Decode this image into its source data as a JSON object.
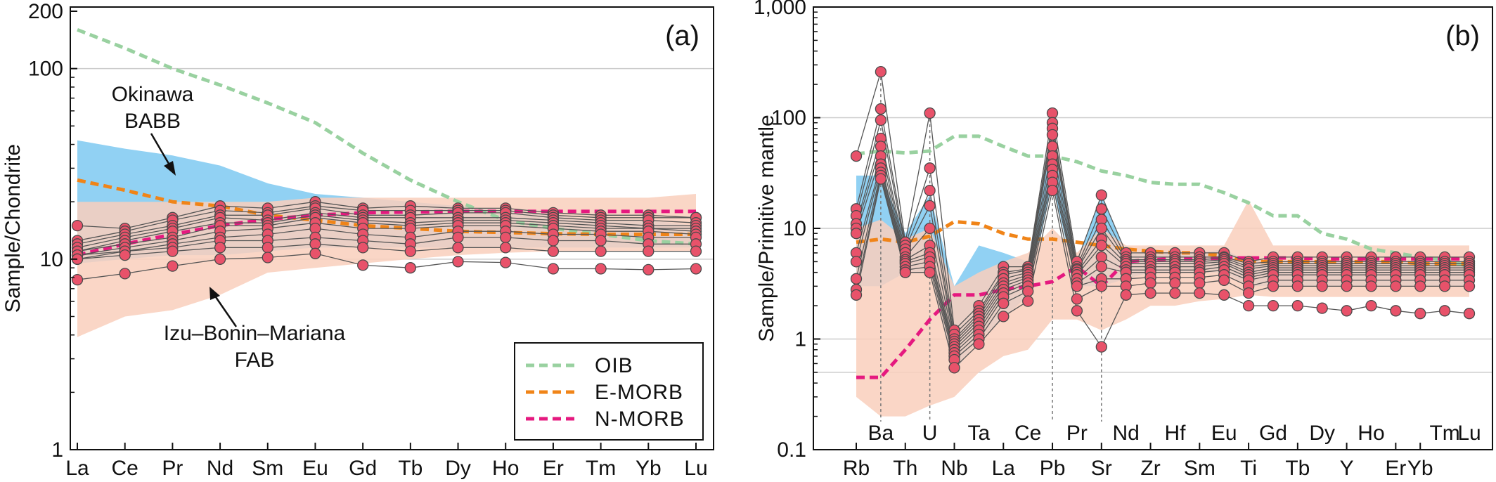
{
  "colors": {
    "oib": "#99d1a0",
    "emorb": "#f08418",
    "nmorb": "#e5197f",
    "babb_field": "#6cc2ef",
    "fab_field": "#f9cfbc",
    "sample_fill": "#e8526a",
    "sample_stroke": "#4a4a4a",
    "sample_line": "#555555",
    "grid": "#cccccc"
  },
  "chart_data": [
    {
      "type": "line",
      "panel": "(a)",
      "ylabel": "Sample/Chondrite",
      "xlabel": "",
      "yscale": "log",
      "ylim": [
        1,
        200
      ],
      "ytick_labels": [
        {
          "value": 1,
          "label": "1"
        },
        {
          "value": 10,
          "label": "10"
        },
        {
          "value": 100,
          "label": "100"
        },
        {
          "value": 200,
          "label": "200"
        }
      ],
      "grid": [
        10,
        100
      ],
      "categories": [
        "La",
        "Ce",
        "Pr",
        "Nd",
        "Sm",
        "Eu",
        "Gd",
        "Tb",
        "Dy",
        "Ho",
        "Er",
        "Tm",
        "Yb",
        "Lu"
      ],
      "reference_lines": [
        {
          "key": "oib",
          "name": "OIB",
          "values": [
            160,
            128,
            100,
            82,
            66,
            52,
            36,
            26,
            20,
            16,
            14.5,
            13.5,
            12.5,
            12
          ]
        },
        {
          "key": "emorb",
          "name": "E-MORB",
          "values": [
            26,
            23,
            20,
            19,
            17,
            16,
            15,
            14.5,
            14,
            13.8,
            13.6,
            13.5,
            13.5,
            13.5
          ]
        },
        {
          "key": "nmorb",
          "name": "N-MORB",
          "values": [
            10.5,
            12,
            13.5,
            15,
            16.2,
            17,
            17.5,
            17.7,
            17.8,
            17.8,
            17.8,
            17.8,
            17.8,
            17.8
          ]
        }
      ],
      "fields": [
        {
          "key": "babb_field",
          "upper": [
            42,
            38,
            35,
            31,
            25,
            22,
            21,
            20,
            19,
            18,
            17,
            16,
            16,
            15
          ],
          "lower": [
            9.5,
            10,
            10.5,
            10.5,
            11,
            11.5,
            11.5,
            11.5,
            11.5,
            11.5,
            11.5,
            11.5,
            11.5,
            11.5
          ]
        },
        {
          "key": "fab_field",
          "upper": [
            20,
            20,
            20,
            20,
            20,
            21,
            21,
            21,
            21,
            21,
            21,
            21,
            21,
            22
          ],
          "lower": [
            3.9,
            5,
            5.4,
            6.5,
            8.5,
            9,
            9.5,
            10,
            10.5,
            10.8,
            11,
            11,
            11,
            11
          ]
        }
      ],
      "samples": [
        [
          15,
          14.5,
          16.5,
          19,
          18.5,
          20,
          18.5,
          19,
          18.5,
          18.5,
          17.5,
          17,
          17,
          16.5
        ],
        [
          12.5,
          14,
          16,
          18,
          17.5,
          19,
          18,
          18,
          18,
          18,
          17,
          16.5,
          16.5,
          16.5
        ],
        [
          12,
          13.5,
          15,
          17,
          17,
          18.5,
          17,
          17,
          17.5,
          17.5,
          16.5,
          16,
          16,
          15.5
        ],
        [
          11.5,
          13,
          14.5,
          16.5,
          16,
          17.5,
          16.5,
          16.5,
          16.5,
          16.5,
          16,
          15.5,
          15,
          15
        ],
        [
          11,
          12.5,
          14,
          15.5,
          15.5,
          17,
          16,
          15.5,
          16,
          16,
          15.5,
          15,
          14.5,
          14.5
        ],
        [
          11,
          12,
          13,
          15,
          15,
          16.5,
          15.5,
          15,
          15.5,
          15.5,
          15,
          14.5,
          14.5,
          14
        ],
        [
          10.5,
          11.5,
          12.5,
          14,
          14.5,
          15.5,
          14.5,
          14.5,
          15,
          15,
          14.5,
          14,
          14,
          13.5
        ],
        [
          10.5,
          11,
          12,
          13,
          13.5,
          14.5,
          13.5,
          13,
          14,
          14,
          13.5,
          13.5,
          13,
          13
        ],
        [
          10,
          11,
          11.5,
          12.5,
          12.5,
          13,
          12.5,
          12,
          13,
          13,
          12.5,
          12.5,
          12,
          12
        ],
        [
          10,
          10.5,
          11,
          11.5,
          11.5,
          12,
          11.5,
          11,
          11.5,
          11.5,
          11,
          11,
          11,
          11
        ],
        [
          7.8,
          8.4,
          9.2,
          10,
          10.2,
          10.7,
          9.3,
          9,
          9.7,
          9.6,
          8.9,
          8.9,
          8.8,
          8.9
        ]
      ],
      "legend": {
        "placement": "bottom-right"
      },
      "annotations": [
        {
          "lines": [
            "Okinawa",
            "BABB"
          ]
        },
        {
          "lines": [
            "Izu–Bonin–Mariana",
            "FAB"
          ]
        }
      ]
    },
    {
      "type": "line",
      "panel": "(b)",
      "ylabel": "Sample/Primitive mantle",
      "xlabel": "",
      "yscale": "log",
      "ylim": [
        0.1,
        1000
      ],
      "ytick_labels": [
        {
          "value": 0.1,
          "label": "0.1"
        },
        {
          "value": 1,
          "label": "1"
        },
        {
          "value": 10,
          "label": "10"
        },
        {
          "value": 100,
          "label": "100"
        },
        {
          "value": 1000,
          "label": "1,000"
        }
      ],
      "grid": [
        0.5,
        1,
        10,
        100
      ],
      "categories": [
        "Rb",
        "Ba",
        "Th",
        "U",
        "Nb",
        "Ta",
        "La",
        "Ce",
        "Pb",
        "Pr",
        "Sr",
        "Nd",
        "Zr",
        "Hf",
        "Sm",
        "Eu",
        "Ti",
        "Gd",
        "Tb",
        "Dy",
        "Y",
        "Ho",
        "Er",
        "Yb",
        "Tm",
        "Lu"
      ],
      "bottom_axis_labels": [
        "Rb",
        "Th",
        "Nb",
        "La",
        "Pb",
        "Sr",
        "Zr",
        "Sm",
        "Ti",
        "Tb",
        "Y",
        "Er",
        "Yb"
      ],
      "inner_axis_labels": [
        "Ba",
        "U",
        "Ta",
        "Ce",
        "Pr",
        "Nd",
        "Hf",
        "Eu",
        "Gd",
        "Dy",
        "Ho",
        "Tm",
        "Lu"
      ],
      "reference_lines": [
        {
          "key": "oib",
          "name": "OIB",
          "values": [
            47,
            50,
            48,
            50,
            68,
            68,
            55,
            45,
            45,
            40,
            33,
            30,
            26,
            25,
            25,
            21,
            17,
            13,
            13,
            9,
            8,
            6.5,
            6,
            5.5,
            5.2,
            4.5
          ]
        },
        {
          "key": "emorb",
          "name": "E-MORB",
          "values": [
            7.5,
            8,
            7.5,
            8.5,
            11.5,
            11,
            9,
            8,
            8,
            7.5,
            7,
            6.5,
            6.2,
            6,
            6,
            5.6,
            5,
            5,
            5,
            5,
            5,
            5,
            5,
            4.8,
            4.8,
            4.8
          ]
        },
        {
          "key": "nmorb",
          "name": "N-MORB",
          "values": [
            0.45,
            0.45,
            0.8,
            1.5,
            2.5,
            2.5,
            2.8,
            3,
            3.3,
            4.5,
            3,
            5,
            5.2,
            5.3,
            5.3,
            5.4,
            5.4,
            5.4,
            5.4,
            5.3,
            5.3,
            5.3,
            5.3,
            5.3,
            5.3,
            5.3
          ]
        }
      ],
      "fields": [
        {
          "key": "babb_field",
          "upper": [
            30,
            30,
            9,
            20,
            3,
            7,
            6,
            5,
            60,
            5,
            20,
            6,
            6,
            6,
            6,
            6.5,
            5,
            5,
            5,
            5,
            5,
            5,
            5,
            5,
            5,
            5
          ],
          "lower": [
            3,
            3,
            4,
            4,
            0.5,
            1,
            1.5,
            2.5,
            25,
            3,
            3,
            3.5,
            4,
            4,
            4,
            4,
            3,
            3,
            3,
            3,
            3,
            3,
            3,
            3,
            3,
            3
          ]
        },
        {
          "key": "fab_field",
          "upper": [
            10,
            12,
            8,
            10,
            3,
            4,
            5,
            6,
            10,
            6,
            10,
            7,
            7,
            7,
            7,
            7,
            18,
            7,
            7,
            7,
            7,
            7,
            7,
            7,
            7,
            7
          ],
          "lower": [
            0.3,
            0.2,
            0.2,
            0.25,
            0.3,
            0.5,
            0.7,
            0.8,
            1.5,
            1.5,
            1.2,
            1.5,
            2,
            2,
            2.2,
            2.3,
            2.5,
            2.4,
            2.4,
            2.4,
            2.4,
            2.4,
            2.4,
            2.4,
            2.4,
            2.4
          ]
        }
      ],
      "samples": [
        [
          45,
          260,
          7.5,
          110,
          1.2,
          2,
          4.5,
          4.5,
          110,
          5,
          20,
          6,
          6,
          6,
          6,
          6,
          5,
          5.5,
          5.5,
          5.5,
          5.5,
          5.5,
          5.5,
          5.5,
          5.5,
          5.5
        ],
        [
          15,
          120,
          7,
          35,
          1.1,
          1.8,
          4,
          4.3,
          90,
          4.5,
          15,
          5.5,
          5.5,
          5.5,
          5.5,
          5.5,
          4.8,
          5,
          5,
          5,
          5,
          5,
          5,
          5,
          5,
          5
        ],
        [
          13,
          95,
          6.5,
          22,
          1,
          1.7,
          3.8,
          4.2,
          80,
          4.3,
          12,
          5.2,
          5.2,
          5.2,
          5.2,
          5.4,
          4.5,
          4.8,
          4.8,
          4.8,
          4.8,
          4.8,
          4.8,
          4.8,
          4.8,
          4.8
        ],
        [
          11,
          65,
          6,
          16,
          0.95,
          1.6,
          3.5,
          4,
          70,
          4.2,
          10,
          5,
          5,
          5,
          5,
          5.2,
          4.3,
          4.6,
          4.6,
          4.6,
          4.6,
          4.6,
          4.6,
          4.6,
          4.6,
          4.6
        ],
        [
          10,
          55,
          5.5,
          10,
          0.9,
          1.5,
          3.2,
          3.8,
          55,
          4,
          8,
          4.8,
          4.8,
          4.8,
          4.8,
          5,
          4,
          4.4,
          4.4,
          4.4,
          4.4,
          4.4,
          4.4,
          4.4,
          4.4,
          4.4
        ],
        [
          9,
          45,
          5.2,
          7,
          0.85,
          1.4,
          3,
          3.6,
          45,
          3.8,
          7,
          4.5,
          4.5,
          4.5,
          4.5,
          4.8,
          3.8,
          4.2,
          4.2,
          4.2,
          4.2,
          4.2,
          4.2,
          4.2,
          4.2,
          4.2
        ],
        [
          6,
          38,
          5,
          6,
          0.8,
          1.3,
          2.8,
          3.4,
          38,
          3.5,
          5.5,
          4.2,
          4.2,
          4.2,
          4.2,
          4.5,
          3.6,
          4,
          4,
          4,
          4,
          4,
          4,
          4,
          4,
          4
        ],
        [
          5,
          35,
          4.8,
          5.5,
          0.75,
          1.2,
          2.6,
          3.2,
          34,
          3.2,
          4.5,
          4,
          4,
          4,
          4,
          4.2,
          3.4,
          3.8,
          3.8,
          3.8,
          3.8,
          3.8,
          3.8,
          3.8,
          3.8,
          3.8
        ],
        [
          3.5,
          32,
          4.5,
          5,
          0.7,
          1.1,
          2.4,
          3,
          30,
          3,
          3.5,
          3.5,
          3.6,
          3.6,
          3.6,
          3.8,
          3,
          3.4,
          3.4,
          3.4,
          3.4,
          3.4,
          3.4,
          3.4,
          3.4,
          3.4
        ],
        [
          2.8,
          30,
          4.2,
          4.5,
          0.65,
          1,
          2.1,
          2.7,
          26,
          2.3,
          3,
          3,
          3.2,
          3.2,
          3.2,
          3.4,
          2.6,
          3,
          3,
          3,
          3,
          3,
          3,
          3,
          3,
          3
        ],
        [
          2.5,
          28,
          4,
          4,
          0.55,
          0.9,
          1.6,
          2.2,
          22,
          1.8,
          0.85,
          2.5,
          2.6,
          2.6,
          2.6,
          2.5,
          2,
          2,
          2,
          1.9,
          1.8,
          2,
          1.8,
          1.7,
          1.8,
          1.7
        ]
      ],
      "dashed_markers": [
        "Ba",
        "U",
        "Pb",
        "Sr"
      ]
    }
  ]
}
